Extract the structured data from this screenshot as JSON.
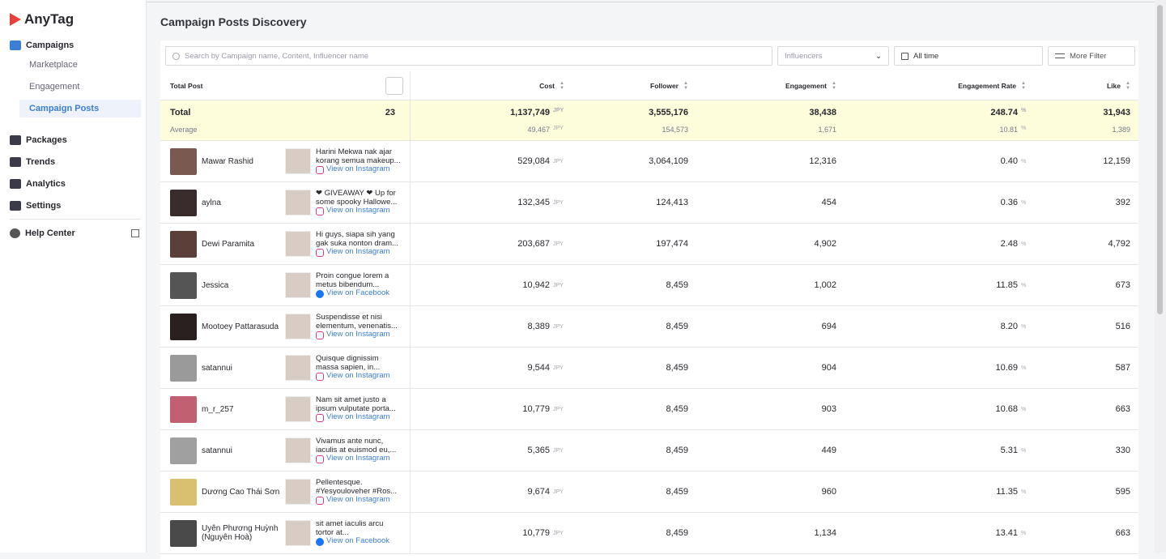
{
  "sidebar": {
    "logo": "AnyTag",
    "nav": [
      {
        "label": "Campaigns",
        "children": [
          "Marketplace",
          "Engagement",
          "Campaign Posts"
        ]
      },
      {
        "label": "Packages"
      },
      {
        "label": "Trends"
      },
      {
        "label": "Analytics"
      },
      {
        "label": "Settings"
      }
    ],
    "help": "Help Center"
  },
  "header": {
    "title": "Campaign Posts Discovery"
  },
  "toolbar": {
    "search": "Search by Campaign name, Content, Influencer name",
    "influencers": "Influencers",
    "period": "All time",
    "filter": "More Filter"
  },
  "table": {
    "post_header": "Total Post",
    "columns": [
      {
        "key": "cost",
        "label": "Cost",
        "unit": "JPY"
      },
      {
        "key": "follower",
        "label": "Follower"
      },
      {
        "key": "engagement",
        "label": "Engagement"
      },
      {
        "key": "rate",
        "label": "Engagement Rate",
        "unit": "%"
      },
      {
        "key": "like",
        "label": "Like"
      }
    ],
    "summary": {
      "total_label": "Total",
      "count": "23",
      "totals": {
        "cost": "1,137,749",
        "follower": "3,555,176",
        "engagement": "38,438",
        "rate": "248.74",
        "like": "31,943"
      },
      "average_label": "Average",
      "averages": {
        "cost": "49,467",
        "follower": "154,573",
        "engagement": "1,671",
        "rate": "10.81",
        "like": "1,389"
      }
    },
    "rows": [
      {
        "influencer": "Mawar Rashid",
        "caption": "Harini Mekwa nak ajar korang semua makeup...",
        "platform": "instagram",
        "link": "View on Instagram",
        "cost": "529,084",
        "follower": "3,064,109",
        "engagement": "12,316",
        "rate": "0.40",
        "like": "12,159"
      },
      {
        "influencer": "aylna",
        "caption": "❤ GIVEAWAY ❤ Up for some spooky Hallowe...",
        "platform": "instagram",
        "link": "View on Instagram",
        "cost": "132,345",
        "follower": "124,413",
        "engagement": "454",
        "rate": "0.36",
        "like": "392"
      },
      {
        "influencer": "Dewi Paramita",
        "caption": "Hi guys, siapa sih yang gak suka nonton dram...",
        "platform": "instagram",
        "link": "View on Instagram",
        "cost": "203,687",
        "follower": "197,474",
        "engagement": "4,902",
        "rate": "2.48",
        "like": "4,792"
      },
      {
        "influencer": "Jessica",
        "caption": "Proin congue lorem a metus bibendum...",
        "platform": "facebook",
        "link": "View on Facebook",
        "cost": "10,942",
        "follower": "8,459",
        "engagement": "1,002",
        "rate": "11.85",
        "like": "673"
      },
      {
        "influencer": "Mootoey Pattarasuda",
        "caption": "Suspendisse et nisi elementum, venenatis...",
        "platform": "instagram",
        "link": "View on Instagram",
        "cost": "8,389",
        "follower": "8,459",
        "engagement": "694",
        "rate": "8.20",
        "like": "516"
      },
      {
        "influencer": "satannui",
        "caption": "Quisque dignissim massa sapien, in...",
        "platform": "instagram",
        "link": "View on Instagram",
        "cost": "9,544",
        "follower": "8,459",
        "engagement": "904",
        "rate": "10.69",
        "like": "587"
      },
      {
        "influencer": "m_r_257",
        "caption": "Nam sit amet justo a ipsum vulputate porta...",
        "platform": "instagram",
        "link": "View on Instagram",
        "cost": "10,779",
        "follower": "8,459",
        "engagement": "903",
        "rate": "10.68",
        "like": "663"
      },
      {
        "influencer": "satannui",
        "caption": "Vivamus ante nunc, iaculis at euismod eu,...",
        "platform": "instagram",
        "link": "View on Instagram",
        "cost": "5,365",
        "follower": "8,459",
        "engagement": "449",
        "rate": "5.31",
        "like": "330"
      },
      {
        "influencer": "Dương Cao Thái Sơn",
        "caption": "Pellentesque. #Yesyouloveher #Ros...",
        "platform": "instagram",
        "link": "View on Instagram",
        "cost": "9,674",
        "follower": "8,459",
        "engagement": "960",
        "rate": "11.35",
        "like": "595"
      },
      {
        "influencer": "Uyên Phương Huỳnh (Nguyên Hoà)",
        "caption": "sit amet iaculis arcu tortor at...",
        "platform": "facebook",
        "link": "View on Facebook",
        "cost": "10,779",
        "follower": "8,459",
        "engagement": "1,134",
        "rate": "13.41",
        "like": "663"
      }
    ]
  }
}
